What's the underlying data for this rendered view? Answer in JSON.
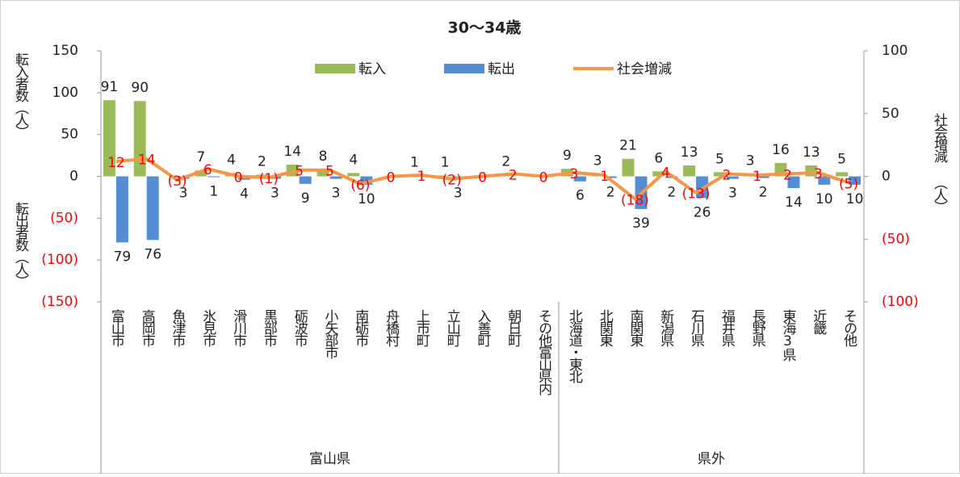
{
  "chart_data": {
    "type": "bar-line",
    "title": "30～34歳",
    "y_label_top": "転入者数（人）",
    "y_label_bottom": "転出者数（人）",
    "y2_label": "社会増減 （人）",
    "categories": [
      "富山市",
      "高岡市",
      "魚津市",
      "氷見市",
      "滑川市",
      "黒部市",
      "砺波市",
      "小矢部市",
      "南砺市",
      "舟橋村",
      "上市町",
      "立山町",
      "入善町",
      "朝日町",
      "その他富山県内",
      "北海道・東北",
      "北関東",
      "南関東",
      "新潟県",
      "石川県",
      "福井県",
      "長野県",
      "東海3県",
      "近畿",
      "その他"
    ],
    "groups": [
      {
        "name": "富山県",
        "count": 15
      },
      {
        "name": "県外",
        "count": 10
      }
    ],
    "series": [
      {
        "name": "転入",
        "type": "bar",
        "color": "#9bbb59",
        "values": [
          91,
          90,
          0,
          7,
          4,
          2,
          14,
          8,
          4,
          0,
          1,
          1,
          0,
          2,
          0,
          9,
          3,
          21,
          6,
          13,
          5,
          3,
          16,
          13,
          5
        ],
        "value_labels": [
          "91",
          "90",
          null,
          "7",
          "4",
          "2",
          "14",
          "8",
          "4",
          null,
          "1",
          "1",
          null,
          "2",
          null,
          "9",
          "3",
          "21",
          "6",
          "13",
          "5",
          "3",
          "16",
          "13",
          "5"
        ]
      },
      {
        "name": "転出",
        "type": "bar",
        "color": "#558ed5",
        "values": [
          -79,
          -76,
          -3,
          -1,
          -4,
          -3,
          -9,
          -3,
          -10,
          0,
          0,
          -3,
          0,
          0,
          0,
          -6,
          -2,
          -39,
          -2,
          -26,
          -3,
          -2,
          -14,
          -10,
          -10
        ],
        "value_labels": [
          "79",
          "76",
          "3",
          "1",
          "4",
          "3",
          "9",
          "3",
          "10",
          null,
          null,
          "3",
          null,
          null,
          null,
          "6",
          "2",
          "39",
          "2",
          "26",
          "3",
          "2",
          "14",
          "10",
          "10"
        ]
      },
      {
        "name": "社会増減",
        "type": "line",
        "axis": "y2",
        "color": "#f79646",
        "values": [
          12,
          14,
          -3,
          6,
          0,
          -1,
          5,
          5,
          -6,
          0,
          1,
          -2,
          0,
          2,
          0,
          3,
          1,
          -18,
          4,
          -13,
          2,
          1,
          2,
          3,
          -5
        ],
        "value_labels": [
          "12",
          "14",
          "(3)",
          "6",
          "0",
          "(1)",
          "5",
          "5",
          "(6)",
          "0",
          "1",
          "(2)",
          "0",
          "2",
          "0",
          "3",
          "1",
          "(18)",
          "4",
          "(13)",
          "2",
          "1",
          "2",
          "3",
          "(5)"
        ]
      }
    ],
    "ylim": [
      -150,
      150
    ],
    "yticks": [
      150,
      100,
      50,
      0,
      {
        "value": -50,
        "label": "(50)"
      },
      {
        "value": -100,
        "label": "(100)"
      },
      {
        "value": -150,
        "label": "(150)"
      }
    ],
    "y2lim": [
      -100,
      100
    ],
    "y2ticks": [
      100,
      50,
      0,
      {
        "value": -50,
        "label": "(50)"
      },
      {
        "value": -100,
        "label": "(100)"
      }
    ],
    "negative_tick_color": "#ff0000",
    "grid": false
  }
}
